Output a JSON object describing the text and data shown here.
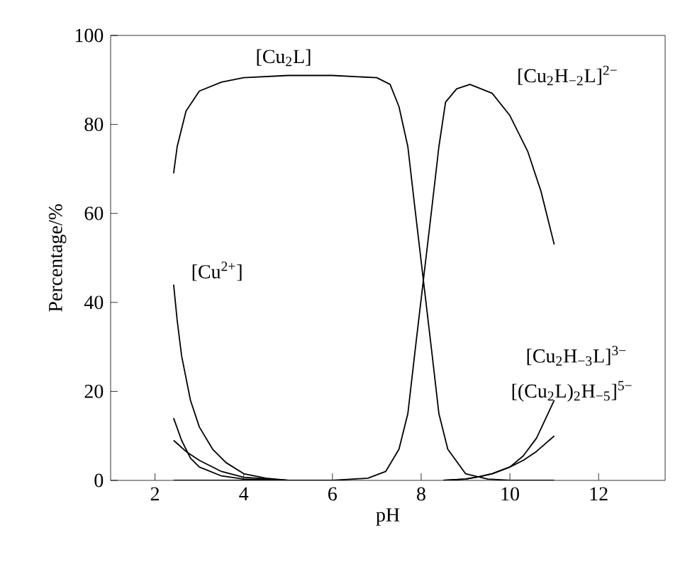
{
  "chart_data": {
    "type": "line",
    "xlabel": "pH",
    "ylabel": "Percentage/%",
    "xlim": [
      1,
      13.5
    ],
    "ylim": [
      0,
      100
    ],
    "xticks": [
      2,
      4,
      6,
      8,
      10,
      12
    ],
    "yticks": [
      0,
      20,
      40,
      60,
      80,
      100
    ],
    "annotations": [
      "[Cu$_{2}$H$_{−3}$L]$^{3−}$",
      "[(Cu$_{2}$L)$_{2}$H$_{−5}$]$^{5−}$"
    ],
    "grid": false,
    "legend": false,
    "marker": "none",
    "line_style": "solid",
    "series": [
      {
        "name": "[Cu$_{2}$L]",
        "color": "#000000",
        "x": [
          2.42,
          2.5,
          2.7,
          3,
          3.5,
          4,
          5,
          6,
          7,
          7.3,
          7.5,
          7.7,
          7.85,
          8.05,
          8.25,
          8.4,
          8.6,
          9,
          9.5,
          10,
          11
        ],
        "values": [
          69,
          75,
          83,
          87.5,
          89.5,
          90.5,
          91,
          91,
          90.5,
          89,
          84,
          75,
          62,
          45,
          28,
          15,
          7,
          1.5,
          0.3,
          0,
          0
        ]
      },
      {
        "name": "[Cu$_{2}$H$_{−2}$L]$^{2−}$",
        "color": "#000000",
        "x": [
          2.42,
          4,
          6,
          6.8,
          7.2,
          7.5,
          7.7,
          7.85,
          8.05,
          8.25,
          8.4,
          8.55,
          8.8,
          9.1,
          9.6,
          10,
          10.4,
          10.7,
          11
        ],
        "values": [
          0,
          0,
          0,
          0.5,
          2,
          7,
          15,
          28,
          45,
          62,
          75,
          85,
          88,
          89,
          87,
          82,
          74,
          65,
          53
        ]
      },
      {
        "name": "[Cu$^{2+}$]",
        "color": "#000000",
        "x": [
          2.42,
          2.5,
          2.6,
          2.8,
          3,
          3.3,
          3.6,
          4,
          4.5,
          5,
          6
        ],
        "values": [
          44,
          36,
          28,
          18,
          12,
          7,
          4,
          1.5,
          0.5,
          0,
          0
        ]
      },
      {
        "color": "#000000",
        "x": [
          2.42,
          2.6,
          2.8,
          3,
          3.5,
          4,
          5
        ],
        "values": [
          14,
          9,
          5,
          3,
          1,
          0.3,
          0
        ]
      },
      {
        "color": "#000000",
        "x": [
          2.42,
          2.7,
          3,
          3.5,
          4,
          5
        ],
        "values": [
          9,
          6.5,
          4.5,
          2,
          0.7,
          0
        ]
      },
      {
        "color": "#000000",
        "x": [
          8.5,
          9,
          9.3,
          9.6,
          10,
          10.3,
          10.6,
          11
        ],
        "values": [
          0,
          0.3,
          0.8,
          1.5,
          3,
          5.5,
          9.5,
          18
        ]
      },
      {
        "color": "#000000",
        "x": [
          8.5,
          9,
          9.3,
          9.6,
          10,
          10.3,
          10.6,
          11
        ],
        "values": [
          0,
          0.3,
          0.8,
          1.5,
          3,
          4.5,
          6.5,
          10
        ]
      }
    ]
  }
}
